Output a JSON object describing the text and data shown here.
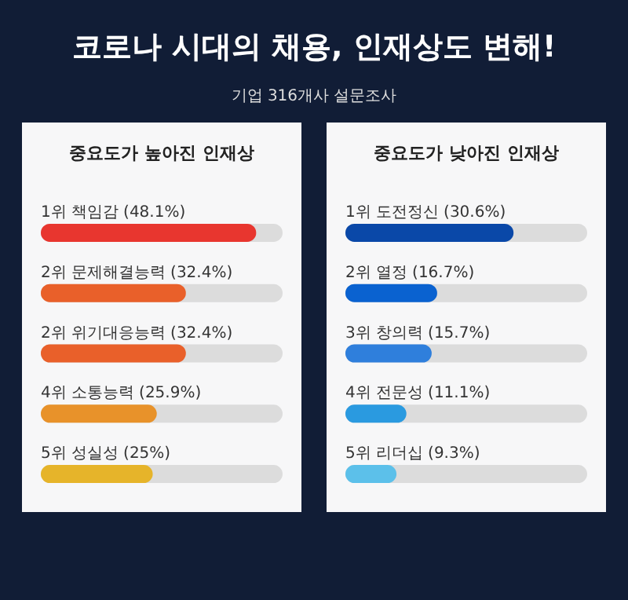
{
  "chart_data": [
    {
      "type": "bar",
      "orientation": "horizontal",
      "title": "중요도가 높아진 인재상",
      "annotations": [
        "코로나 시대의 채용, 인재상도 변해!",
        "기업 316개사 설문조사"
      ],
      "categories": [
        "1위 책임감",
        "2위 문제해결능력",
        "2위 위기대응능력",
        "4위 소통능력",
        "5위 성실성"
      ],
      "values": [
        48.1,
        32.4,
        32.4,
        25.9,
        25
      ],
      "value_labels": [
        "(48.1%)",
        "(32.4%)",
        "(32.4%)",
        "(25.9%)",
        "(25%)"
      ],
      "colors": [
        "#e8362f",
        "#e9602a",
        "#e9602a",
        "#e8922a",
        "#e6b42a"
      ],
      "xlim": [
        0,
        54
      ],
      "tick_labels": false,
      "legend": false
    },
    {
      "type": "bar",
      "orientation": "horizontal",
      "title": "중요도가 낮아진 인재상",
      "categories": [
        "1위 도전정신",
        "2위 열정",
        "3위 창의력",
        "4위 전문성",
        "5위 리더십"
      ],
      "values": [
        30.6,
        16.7,
        15.7,
        11.1,
        9.3
      ],
      "value_labels": [
        "(30.6%)",
        "(16.7%)",
        "(15.7%)",
        "(11.1%)",
        "(9.3%)"
      ],
      "colors": [
        "#0a48a8",
        "#0a62d0",
        "#2f7fdc",
        "#2a9ae0",
        "#5cc0ea"
      ],
      "xlim": [
        0,
        44
      ],
      "tick_labels": false,
      "legend": false
    }
  ]
}
